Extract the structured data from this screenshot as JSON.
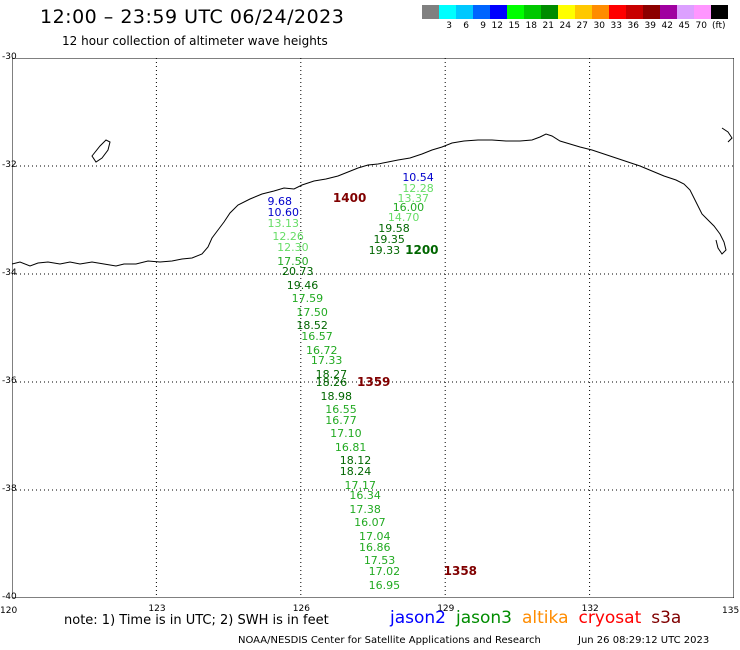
{
  "header": {
    "title": "12:00 – 23:59 UTC 06/24/2023",
    "subtitle": "12 hour collection of altimeter wave heights"
  },
  "legend": {
    "unit": "(ft)",
    "bins": [
      {
        "label": "",
        "color": "#808080"
      },
      {
        "label": "3",
        "color": "#00ffff"
      },
      {
        "label": "6",
        "color": "#00c8ff"
      },
      {
        "label": "9",
        "color": "#0064ff"
      },
      {
        "label": "12",
        "color": "#0000ff"
      },
      {
        "label": "15",
        "color": "#00ff00"
      },
      {
        "label": "18",
        "color": "#00c800"
      },
      {
        "label": "21",
        "color": "#008c00"
      },
      {
        "label": "24",
        "color": "#ffff00"
      },
      {
        "label": "27",
        "color": "#ffc800"
      },
      {
        "label": "30",
        "color": "#ff8c00"
      },
      {
        "label": "33",
        "color": "#ff0000"
      },
      {
        "label": "36",
        "color": "#c80000"
      },
      {
        "label": "39",
        "color": "#8c0000"
      },
      {
        "label": "42",
        "color": "#a000a0"
      },
      {
        "label": "45",
        "color": "#dca0ff"
      },
      {
        "label": "70",
        "color": "#ff96ff"
      },
      {
        "label": "",
        "color": "#000000"
      }
    ]
  },
  "axes": {
    "lon_labels": [
      "120",
      "123",
      "126",
      "129",
      "132",
      "135"
    ],
    "lat_labels": [
      "-30",
      "-32",
      "-34",
      "-36",
      "-38",
      "-40"
    ],
    "lon_range": [
      120,
      135
    ],
    "lat_range": [
      -30,
      -40
    ]
  },
  "observations": [
    {
      "v": "10.54",
      "color": "#0000cc",
      "lon": 128.4,
      "lat": -32.2
    },
    {
      "v": "12.28",
      "color": "#66dd66",
      "lon": 128.4,
      "lat": -32.4
    },
    {
      "v": "13.37",
      "color": "#66dd66",
      "lon": 128.3,
      "lat": -32.6
    },
    {
      "v": "16.00",
      "color": "#22aa22",
      "lon": 128.2,
      "lat": -32.75
    },
    {
      "v": "14.70",
      "color": "#66dd66",
      "lon": 128.1,
      "lat": -32.95
    },
    {
      "v": "19.58",
      "color": "#006600",
      "lon": 127.9,
      "lat": -33.15
    },
    {
      "v": "19.35",
      "color": "#006600",
      "lon": 127.8,
      "lat": -33.35
    },
    {
      "v": "19.33",
      "color": "#006600",
      "lon": 127.7,
      "lat": -33.55
    },
    {
      "v": "9.68",
      "color": "#0000cc",
      "lon": 125.6,
      "lat": -32.65
    },
    {
      "v": "10.60",
      "color": "#0000cc",
      "lon": 125.6,
      "lat": -32.85
    },
    {
      "v": "13.13",
      "color": "#66dd66",
      "lon": 125.6,
      "lat": -33.05
    },
    {
      "v": "12.26",
      "color": "#66dd66",
      "lon": 125.7,
      "lat": -33.3
    },
    {
      "v": "12.30",
      "color": "#66dd66",
      "lon": 125.8,
      "lat": -33.5
    },
    {
      "v": "17.50",
      "color": "#22aa22",
      "lon": 125.8,
      "lat": -33.75
    },
    {
      "v": "20.73",
      "color": "#006600",
      "lon": 125.9,
      "lat": -33.95
    },
    {
      "v": "19.46",
      "color": "#006600",
      "lon": 126.0,
      "lat": -34.2
    },
    {
      "v": "17.59",
      "color": "#22aa22",
      "lon": 126.1,
      "lat": -34.45
    },
    {
      "v": "17.50",
      "color": "#22aa22",
      "lon": 126.2,
      "lat": -34.7
    },
    {
      "v": "18.52",
      "color": "#006600",
      "lon": 126.2,
      "lat": -34.95
    },
    {
      "v": "16.57",
      "color": "#22aa22",
      "lon": 126.3,
      "lat": -35.15
    },
    {
      "v": "16.72",
      "color": "#22aa22",
      "lon": 126.4,
      "lat": -35.4
    },
    {
      "v": "17.33",
      "color": "#22aa22",
      "lon": 126.5,
      "lat": -35.6
    },
    {
      "v": "18.27",
      "color": "#006600",
      "lon": 126.6,
      "lat": -35.85
    },
    {
      "v": "18.26",
      "color": "#006600",
      "lon": 126.6,
      "lat": -36.0
    },
    {
      "v": "18.98",
      "color": "#006600",
      "lon": 126.7,
      "lat": -36.25
    },
    {
      "v": "16.55",
      "color": "#22aa22",
      "lon": 126.8,
      "lat": -36.5
    },
    {
      "v": "16.77",
      "color": "#22aa22",
      "lon": 126.8,
      "lat": -36.7
    },
    {
      "v": "17.10",
      "color": "#22aa22",
      "lon": 126.9,
      "lat": -36.95
    },
    {
      "v": "16.81",
      "color": "#22aa22",
      "lon": 127.0,
      "lat": -37.2
    },
    {
      "v": "18.12",
      "color": "#006600",
      "lon": 127.1,
      "lat": -37.45
    },
    {
      "v": "18.24",
      "color": "#006600",
      "lon": 127.1,
      "lat": -37.65
    },
    {
      "v": "17.17",
      "color": "#22aa22",
      "lon": 127.2,
      "lat": -37.9
    },
    {
      "v": "16.34",
      "color": "#22aa22",
      "lon": 127.3,
      "lat": -38.1
    },
    {
      "v": "17.38",
      "color": "#22aa22",
      "lon": 127.3,
      "lat": -38.35
    },
    {
      "v": "16.07",
      "color": "#22aa22",
      "lon": 127.4,
      "lat": -38.6
    },
    {
      "v": "17.04",
      "color": "#22aa22",
      "lon": 127.5,
      "lat": -38.85
    },
    {
      "v": "16.86",
      "color": "#22aa22",
      "lon": 127.5,
      "lat": -39.05
    },
    {
      "v": "17.53",
      "color": "#22aa22",
      "lon": 127.6,
      "lat": -39.3
    },
    {
      "v": "17.02",
      "color": "#22aa22",
      "lon": 127.7,
      "lat": -39.5
    },
    {
      "v": "16.95",
      "color": "#22aa22",
      "lon": 127.7,
      "lat": -39.75
    }
  ],
  "time_stamps": [
    {
      "v": "1400",
      "color": "#800000",
      "lon": 127.0,
      "lat": -32.6
    },
    {
      "v": "1200",
      "color": "#006600",
      "lon": 128.5,
      "lat": -33.55
    },
    {
      "v": "1359",
      "color": "#800000",
      "lon": 127.5,
      "lat": -36.0
    },
    {
      "v": "1358",
      "color": "#800000",
      "lon": 129.3,
      "lat": -39.5
    }
  ],
  "footer": {
    "note": "note: 1) Time is in UTC; 2) SWH is in feet",
    "satellites": [
      {
        "name": "jason2",
        "color": "#0000ff"
      },
      {
        "name": "jason3",
        "color": "#008c00"
      },
      {
        "name": "altika",
        "color": "#ff8c00"
      },
      {
        "name": "cryosat",
        "color": "#ff0000"
      },
      {
        "name": "s3a",
        "color": "#800000"
      }
    ],
    "credit": "NOAA/NESDIS Center for Satellite Applications and Research",
    "generated": "Jun 26 08:29:12 UTC 2023"
  }
}
